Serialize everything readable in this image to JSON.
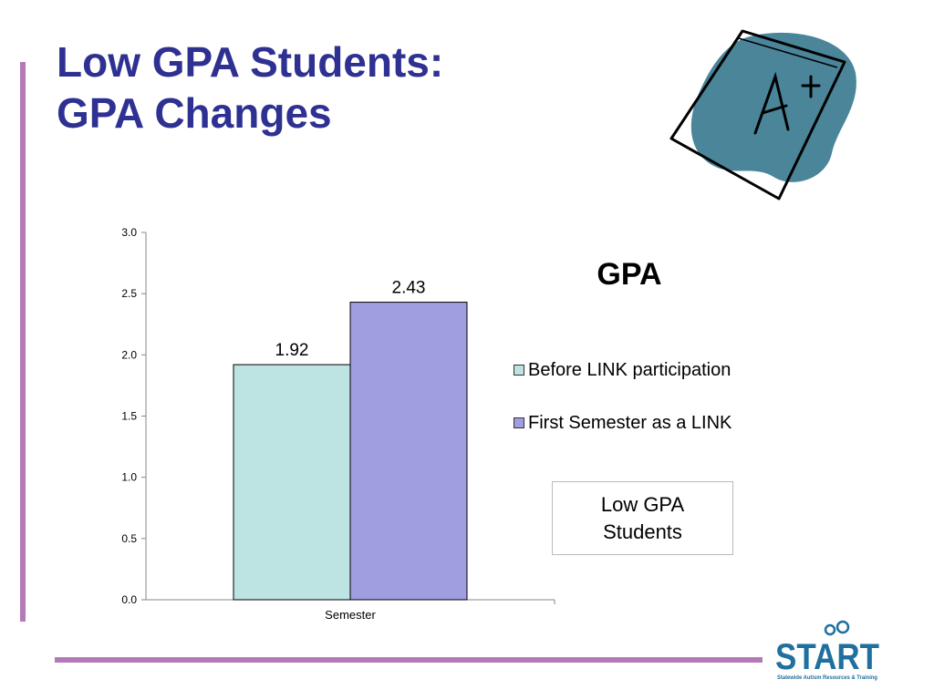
{
  "slide": {
    "title_line1": "Low GPA Students:",
    "title_line2": "GPA Changes",
    "note_line1": "Low GPA",
    "note_line2": "Students",
    "logo_text": "START",
    "logo_subtitle": "Statewide Autism Resources & Training"
  },
  "colors": {
    "title": "#2e3192",
    "accent_rule": "#b47ab8",
    "clipart_blob": "#4a8599"
  },
  "icons": {
    "clipart": "a-plus-paper-icon",
    "logo": "start-logo-icon"
  },
  "chart_data": {
    "type": "bar",
    "title": "GPA",
    "categories": [
      "Semester"
    ],
    "series": [
      {
        "name": "Before LINK participation",
        "values": [
          1.92
        ],
        "color": "#bde3e3"
      },
      {
        "name": "First Semester as a LINK",
        "values": [
          2.43
        ],
        "color": "#a09ee0"
      }
    ],
    "data_labels": [
      "1.92",
      "2.43"
    ],
    "y_ticks": [
      "0.0",
      "0.5",
      "1.0",
      "1.5",
      "2.0",
      "2.5",
      "3.0"
    ],
    "ylim": [
      0,
      3
    ],
    "grid": false,
    "legend_position": "right"
  }
}
